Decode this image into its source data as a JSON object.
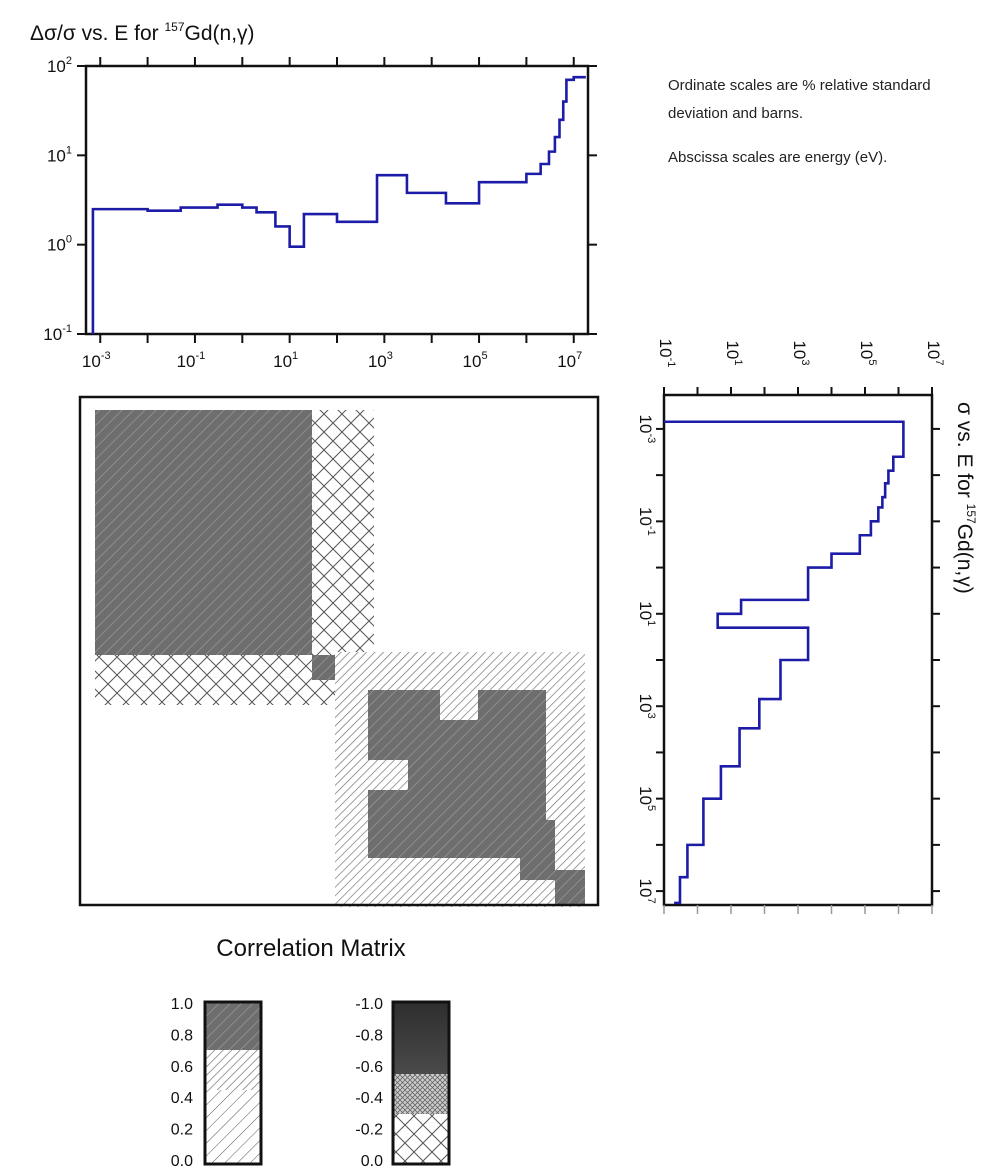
{
  "chart_data": [
    {
      "type": "line",
      "step": true,
      "title_parts": [
        "Δσ/σ vs. E for ",
        "157",
        "Gd(n,γ)"
      ],
      "x_scale": "log",
      "y_scale": "log",
      "xlim": [
        0.0005,
        20000000
      ],
      "ylim": [
        0.1,
        100
      ],
      "x_ticks": [
        0.001,
        0.1,
        10,
        1000,
        100000,
        10000000
      ],
      "x_tick_labels": [
        [
          "10",
          "-3"
        ],
        [
          "10",
          "-1"
        ],
        [
          "10",
          "1"
        ],
        [
          "10",
          "3"
        ],
        [
          "10",
          "5"
        ],
        [
          "10",
          "7"
        ]
      ],
      "y_ticks": [
        0.1,
        1,
        10,
        100
      ],
      "y_tick_labels": [
        [
          "10",
          "-1"
        ],
        [
          "10",
          "0"
        ],
        [
          "10",
          "1"
        ],
        [
          "10",
          "2"
        ]
      ],
      "color": "#1c1ca8",
      "series": [
        {
          "x": [
            0.0007,
            0.0007,
            0.01,
            0.05,
            0.3,
            1,
            2,
            5,
            10,
            20,
            100,
            700,
            3000,
            20000,
            100000,
            1000000,
            2000000,
            3000000,
            4000000,
            5000000,
            6000000,
            7000000,
            10000000,
            18000000
          ],
          "y": [
            0.1,
            2.5,
            2.4,
            2.6,
            2.8,
            2.6,
            2.3,
            1.6,
            0.95,
            2.2,
            1.8,
            6.0,
            3.8,
            2.9,
            5.0,
            6.2,
            8.0,
            11,
            16,
            25,
            40,
            70,
            75,
            75
          ]
        }
      ]
    },
    {
      "type": "line",
      "step": true,
      "orientation": "rotated",
      "title_parts": [
        "σ vs. E for ",
        "157",
        "Gd(n,γ)"
      ],
      "x_scale": "log",
      "y_scale": "log",
      "xlim": [
        0.0005,
        20000000
      ],
      "ylim": [
        0.1,
        10000000
      ],
      "energy_ticks": [
        0.001,
        0.1,
        10,
        1000,
        100000,
        10000000
      ],
      "energy_tick_labels": [
        [
          "10",
          "-3"
        ],
        [
          "10",
          "-1"
        ],
        [
          "10",
          "1"
        ],
        [
          "10",
          "3"
        ],
        [
          "10",
          "5"
        ],
        [
          "10",
          "7"
        ]
      ],
      "value_ticks": [
        0.1,
        10,
        1000,
        100000,
        10000000
      ],
      "value_tick_labels": [
        [
          "10",
          "-1"
        ],
        [
          "10",
          "1"
        ],
        [
          "10",
          "3"
        ],
        [
          "10",
          "5"
        ],
        [
          "10",
          "7"
        ]
      ],
      "color": "#1c1ca8",
      "series": [
        {
          "x": [
            0.0007,
            0.004,
            0.008,
            0.015,
            0.03,
            0.05,
            0.1,
            0.2,
            0.5,
            1,
            2,
            5,
            10,
            20,
            100,
            700,
            3000,
            20000,
            100000,
            1000000,
            5000000,
            18000000
          ],
          "y": [
            1400000,
            700000,
            500000,
            400000,
            330000,
            250000,
            150000,
            70000,
            10000,
            2000,
            2000,
            20,
            4,
            2000,
            300,
            70,
            18,
            5,
            1.5,
            0.5,
            0.3,
            0.2
          ]
        }
      ]
    },
    {
      "type": "heatmap",
      "title": "Correlation Matrix",
      "scale_positive": [
        "1.0",
        "0.8",
        "0.6",
        "0.4",
        "0.2",
        "0.0"
      ],
      "scale_negative": [
        "-1.0",
        "-0.8",
        "-0.6",
        "-0.4",
        "-0.2",
        "0.0"
      ]
    }
  ],
  "notes": [
    "Ordinate scales are % relative standard deviation and barns.",
    "Abscissa scales are energy (eV)."
  ]
}
